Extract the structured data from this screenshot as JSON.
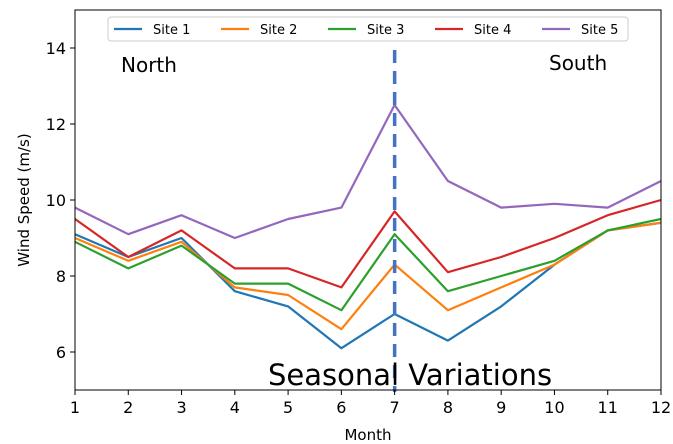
{
  "chart_data": {
    "type": "line",
    "title": "",
    "xlabel": "Month",
    "ylabel": "Wind Speed (m/s)",
    "x": [
      1,
      2,
      3,
      4,
      5,
      6,
      7,
      8,
      9,
      10,
      11,
      12
    ],
    "xlim": [
      1,
      12
    ],
    "ylim": [
      5,
      15
    ],
    "yticks": [
      6,
      8,
      10,
      12,
      14
    ],
    "grid": false,
    "legend_position": "top-center",
    "series": [
      {
        "name": "Site 1",
        "color": "#1f77b4",
        "values": [
          9.1,
          8.5,
          9.0,
          7.6,
          7.2,
          6.1,
          7.0,
          6.3,
          7.2,
          8.3,
          9.2,
          9.4
        ]
      },
      {
        "name": "Site 2",
        "color": "#ff7f0e",
        "values": [
          9.0,
          8.4,
          8.9,
          7.7,
          7.5,
          6.6,
          8.3,
          7.1,
          7.7,
          8.3,
          9.2,
          9.4
        ]
      },
      {
        "name": "Site 3",
        "color": "#2ca02c",
        "values": [
          8.9,
          8.2,
          8.8,
          7.8,
          7.8,
          7.1,
          9.1,
          7.6,
          8.0,
          8.4,
          9.2,
          9.5
        ]
      },
      {
        "name": "Site 4",
        "color": "#d62728",
        "values": [
          9.5,
          8.5,
          9.2,
          8.2,
          8.2,
          7.7,
          9.7,
          8.1,
          8.5,
          9.0,
          9.6,
          10.0
        ]
      },
      {
        "name": "Site 5",
        "color": "#9467bd",
        "values": [
          9.8,
          9.1,
          9.6,
          9.0,
          9.5,
          9.8,
          12.5,
          10.5,
          9.8,
          9.9,
          9.8,
          10.5
        ]
      }
    ],
    "vline": {
      "x": 7,
      "color": "#4472c4",
      "style": "dashed"
    },
    "annotations": {
      "north": "North",
      "south": "South",
      "seasonal": "Seasonal Variations"
    }
  }
}
